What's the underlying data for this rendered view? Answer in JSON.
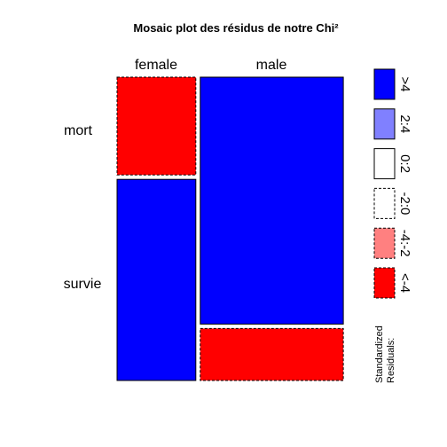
{
  "chart_data": {
    "type": "mosaic",
    "title": "Mosaic plot des résidus de notre Chi²",
    "column_variable_levels": [
      "female",
      "male"
    ],
    "row_variable_levels": [
      "mort",
      "survie"
    ],
    "cells": [
      {
        "column": "female",
        "row": "mort",
        "residual_class": "<-4",
        "fill": "#FF0000",
        "dashed": true
      },
      {
        "column": "female",
        "row": "survie",
        "residual_class": ">4",
        "fill": "#0000FF",
        "dashed": false
      },
      {
        "column": "male",
        "row": "mort",
        "residual_class": ">4",
        "fill": "#0000FF",
        "dashed": false
      },
      {
        "column": "male",
        "row": "survie",
        "residual_class": "<-4",
        "fill": "#FF0000",
        "dashed": true
      }
    ],
    "column_proportions": [
      0.355,
      0.645
    ],
    "row_proportions_within_column": {
      "female": [
        0.327,
        0.673
      ],
      "male": [
        0.826,
        0.174
      ]
    },
    "legend": {
      "placement": "right",
      "title_lines": [
        "Standardized",
        "Residuals:"
      ],
      "items": [
        {
          "label": ">4",
          "fill": "#0000FF",
          "dashed": false
        },
        {
          "label": "2:4",
          "fill": "#8080FF",
          "dashed": false
        },
        {
          "label": "0:2",
          "fill": "#FFFFFF",
          "dashed": false
        },
        {
          "label": "-2:0",
          "fill": "#FFFFFF",
          "dashed": true
        },
        {
          "label": "-4:-2",
          "fill": "#FF8080",
          "dashed": true
        },
        {
          "label": "<-4",
          "fill": "#FF0000",
          "dashed": true
        }
      ]
    }
  }
}
